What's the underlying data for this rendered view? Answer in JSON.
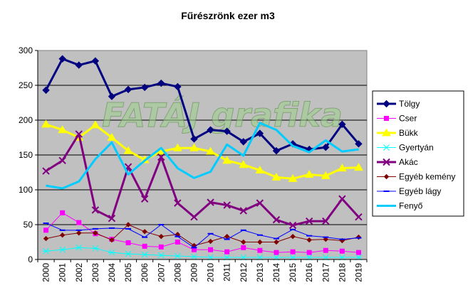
{
  "chart_data": {
    "type": "line",
    "title": "Fűrészrönk ezer m3",
    "xlabel": "",
    "ylabel": "",
    "ylim": [
      0,
      300
    ],
    "yticks": [
      0,
      50,
      100,
      150,
      200,
      250,
      300
    ],
    "grid": "horizontal",
    "legend_position": "right",
    "watermark": "FATÁJ grafika",
    "plot_background": "#c0c0c0",
    "categories": [
      "2000",
      "2001",
      "2002",
      "2003",
      "2004",
      "2005",
      "2006",
      "2007",
      "2008",
      "2009",
      "2010",
      "2011",
      "2012",
      "2013",
      "2014",
      "2015",
      "2016",
      "2017",
      "2018",
      "2019"
    ],
    "series": [
      {
        "name": "Tölgy",
        "color": "#000080",
        "marker": "diamond",
        "width": 3,
        "values": [
          243,
          288,
          279,
          285,
          234,
          244,
          247,
          253,
          248,
          173,
          186,
          184,
          169,
          181,
          156,
          166,
          158,
          161,
          194,
          166
        ]
      },
      {
        "name": "Cser",
        "color": "#ff00ff",
        "marker": "square",
        "width": 1,
        "values": [
          42,
          67,
          53,
          37,
          29,
          24,
          19,
          18,
          25,
          14,
          14,
          11,
          17,
          13,
          10,
          11,
          10,
          13,
          12,
          10
        ]
      },
      {
        "name": "Bükk",
        "color": "#ffff00",
        "marker": "triangle",
        "width": 3,
        "values": [
          194,
          186,
          175,
          193,
          175,
          156,
          143,
          155,
          160,
          160,
          155,
          142,
          136,
          128,
          118,
          116,
          122,
          120,
          131,
          132
        ]
      },
      {
        "name": "Gyertyán",
        "color": "#00ffff",
        "marker": "asterisk",
        "width": 1,
        "values": [
          12,
          14,
          17,
          16,
          10,
          8,
          7,
          6,
          5,
          4,
          3,
          3,
          3,
          3,
          3,
          3,
          3,
          3,
          3,
          3
        ]
      },
      {
        "name": "Akác",
        "color": "#800080",
        "marker": "x",
        "width": 3,
        "values": [
          127,
          142,
          180,
          71,
          59,
          133,
          87,
          147,
          81,
          61,
          82,
          78,
          70,
          81,
          57,
          49,
          55,
          55,
          87,
          61
        ]
      },
      {
        "name": "Egyéb kemény",
        "color": "#800000",
        "marker": "diamond-small",
        "width": 1,
        "values": [
          30,
          35,
          38,
          38,
          28,
          50,
          40,
          33,
          36,
          20,
          26,
          33,
          25,
          25,
          25,
          33,
          28,
          29,
          27,
          32
        ]
      },
      {
        "name": "Egyéb lágy",
        "color": "#0000ff",
        "marker": "dash",
        "width": 1,
        "values": [
          52,
          42,
          42,
          44,
          45,
          44,
          32,
          50,
          33,
          17,
          37,
          29,
          42,
          35,
          30,
          43,
          34,
          32,
          29,
          31
        ]
      },
      {
        "name": "Fenyő",
        "color": "#00ccff",
        "marker": "none",
        "width": 3,
        "values": [
          106,
          102,
          112,
          144,
          168,
          122,
          142,
          160,
          131,
          117,
          126,
          165,
          149,
          196,
          186,
          163,
          154,
          171,
          155,
          158
        ]
      }
    ]
  }
}
